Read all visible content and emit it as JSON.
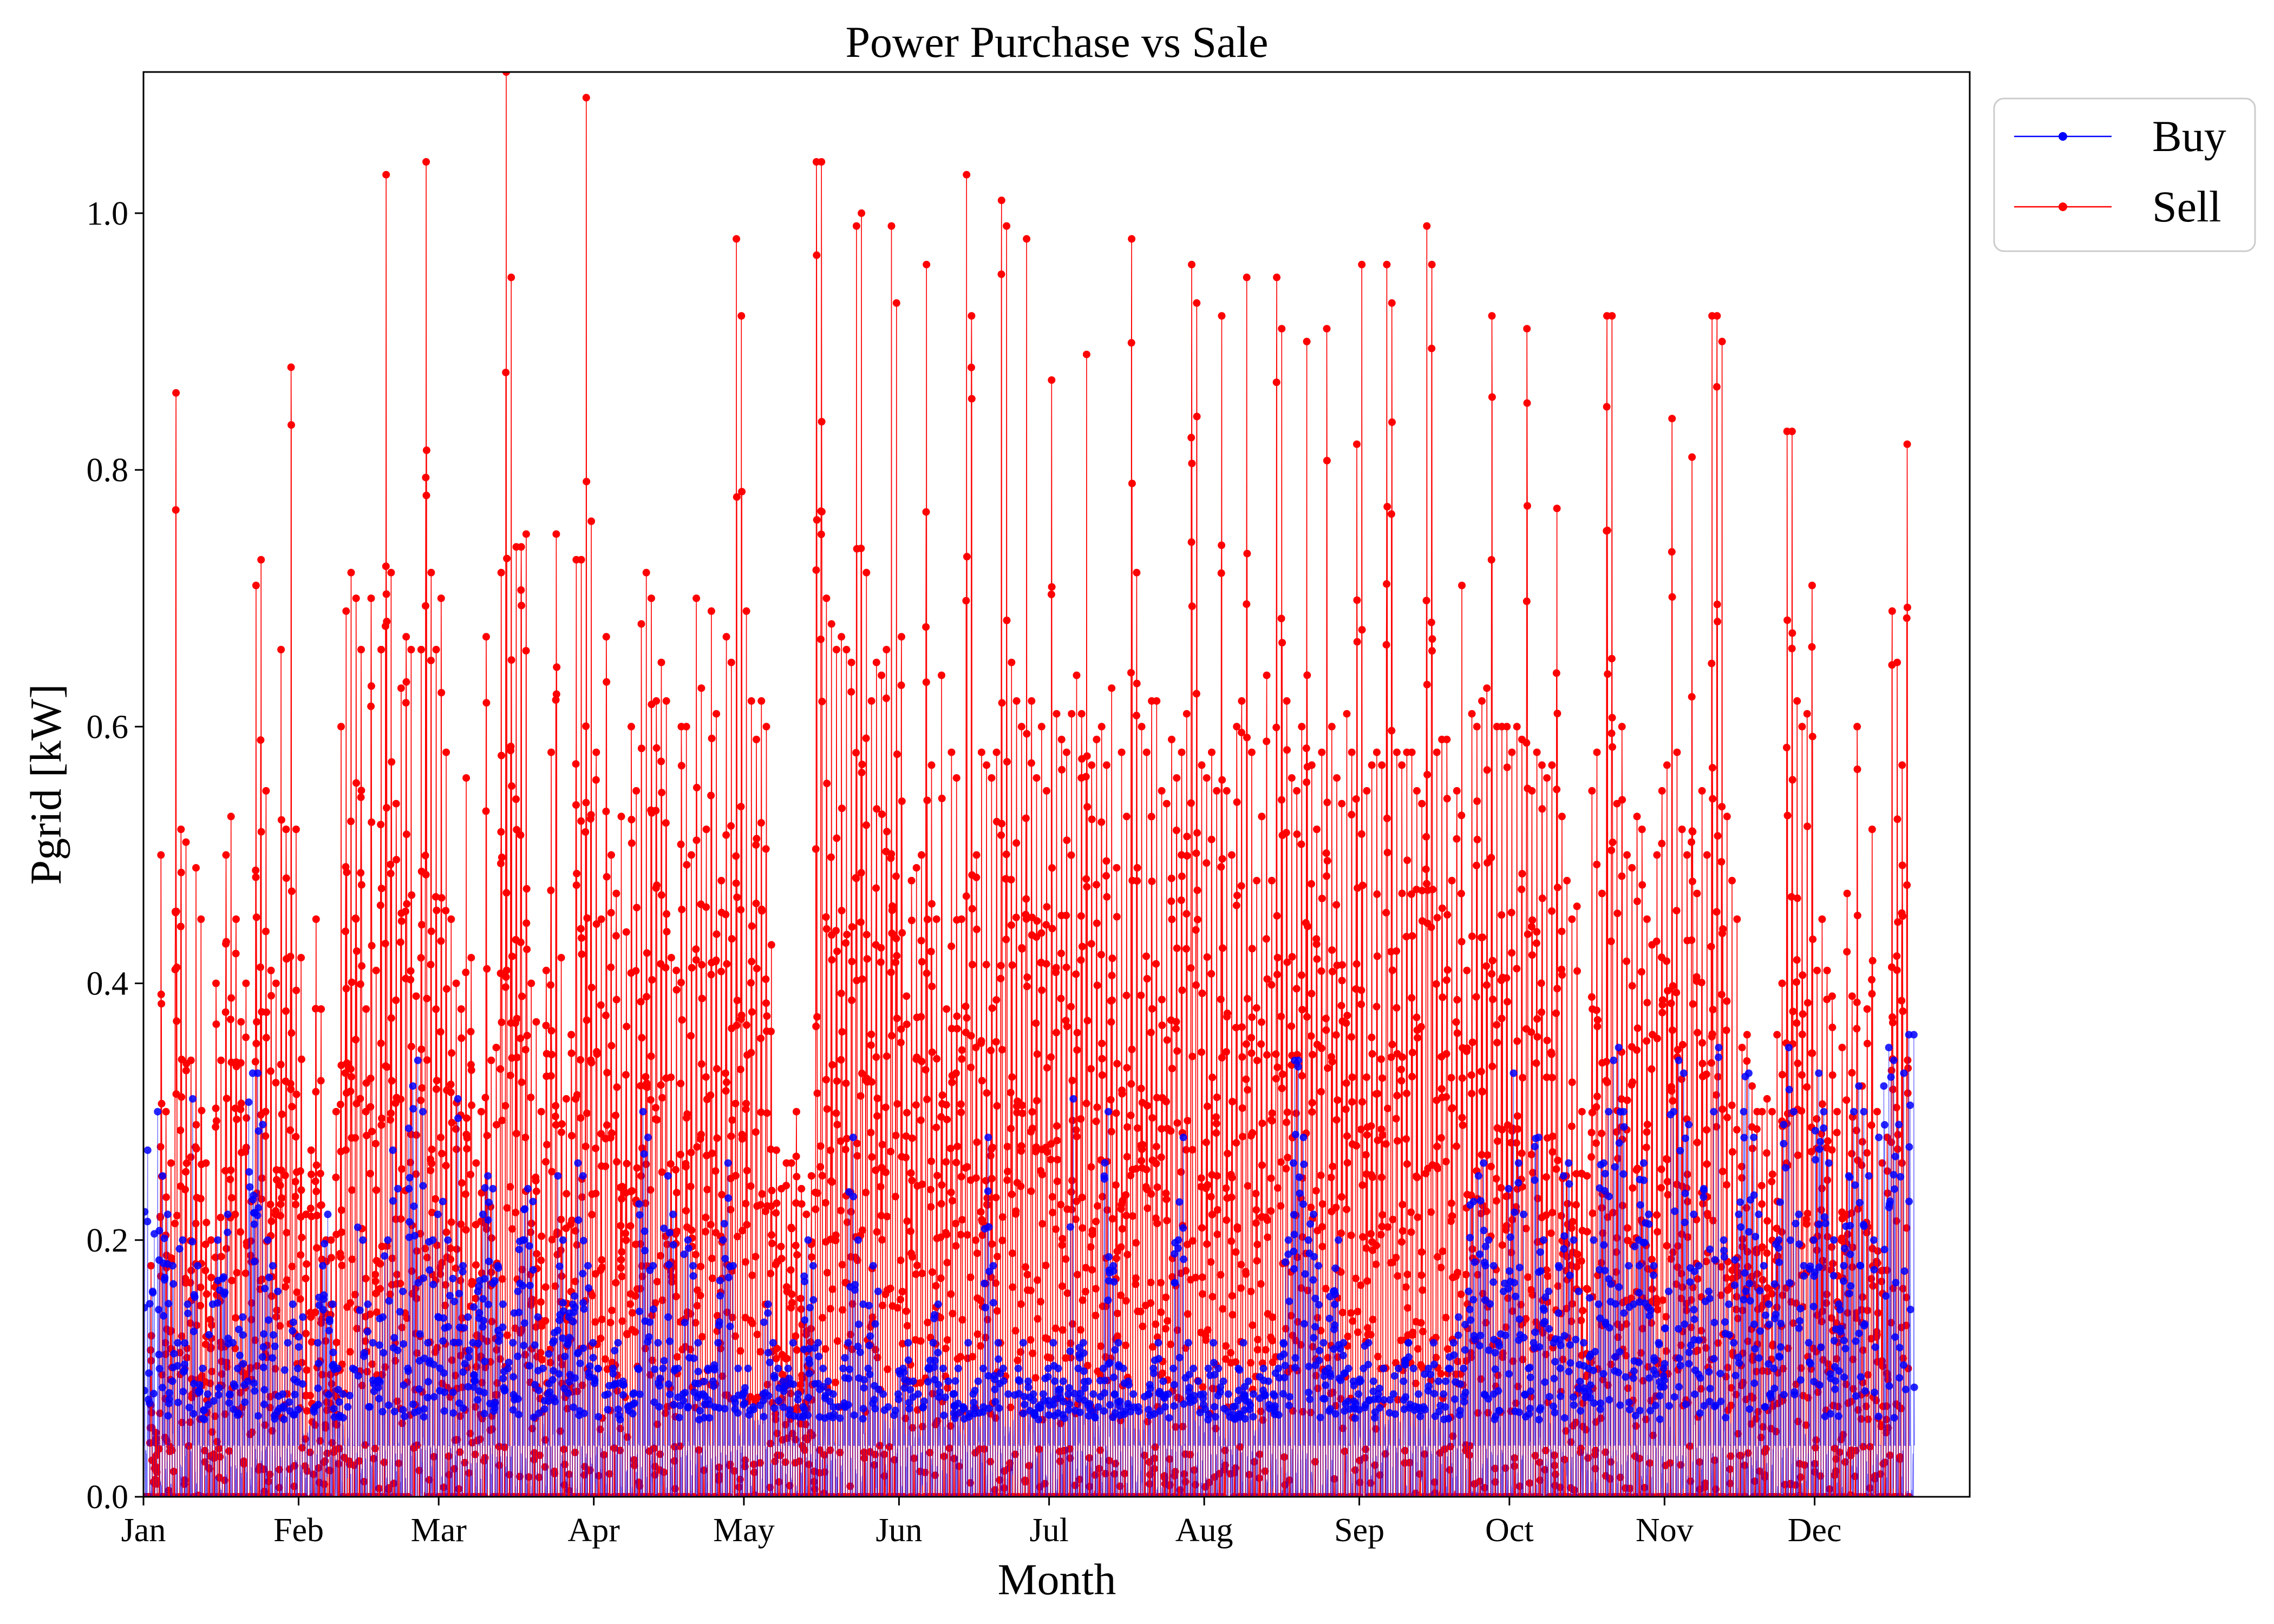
{
  "chart_data": {
    "type": "line",
    "title": "Power Purchase vs Sale",
    "xlabel": "Month",
    "ylabel": "Pgrid [kW]",
    "ylim": [
      0.0,
      1.11
    ],
    "xlim_days": [
      0,
      365
    ],
    "yticks": [
      "0.0",
      "0.2",
      "0.4",
      "0.6",
      "0.8",
      "1.0"
    ],
    "yticks_values": [
      0.0,
      0.2,
      0.4,
      0.6,
      0.8,
      1.0
    ],
    "xticks": [
      "Jan",
      "Feb",
      "Mar",
      "Apr",
      "May",
      "Jun",
      "Jul",
      "Aug",
      "Sep",
      "Oct",
      "Nov",
      "Dec"
    ],
    "xticks_day_of_year": [
      0,
      31,
      59,
      90,
      120,
      151,
      181,
      212,
      243,
      273,
      304,
      334
    ],
    "grid": false,
    "legend_position": "outside-upper-right",
    "resolution": "hourly samples across one year (8760 per series); shown here as daily peak values",
    "series": [
      {
        "name": "Buy",
        "color": "#0000ff",
        "marker": "circle",
        "base_level": 0.04,
        "daily_peak": [
          0.27,
          0.16,
          0.3,
          0.25,
          0.22,
          0.18,
          0.12,
          0.2,
          0.15,
          0.31,
          0.18,
          0.1,
          0.08,
          0.15,
          0.2,
          0.17,
          0.22,
          0.12,
          0.1,
          0.14,
          0.09,
          0.33,
          0.33,
          0.29,
          0.2,
          0.18,
          0.16,
          0.08,
          0.12,
          0.15,
          0.1,
          0.14,
          0.05,
          0.06,
          0.12,
          0.18,
          0.22,
          0.15,
          0.1,
          0.08,
          0.07,
          0.1,
          0.21,
          0.2,
          0.15,
          0.12,
          0.09,
          0.14,
          0.2,
          0.27,
          0.24,
          0.16,
          0.1,
          0.32,
          0.34,
          0.3,
          0.12,
          0.2,
          0.22,
          0.23,
          0.2,
          0.17,
          0.31,
          0.18,
          0.14,
          0.12,
          0.16,
          0.22,
          0.25,
          0.24,
          0.18,
          0.15,
          0.1,
          0.12,
          0.16,
          0.2,
          0.24,
          0.23,
          0.14,
          0.1,
          0.08,
          0.12,
          0.25,
          0.2,
          0.12,
          0.15,
          0.26,
          0.25,
          0.18,
          0.12,
          0.1,
          0.06,
          0.08,
          0.1,
          0.12,
          0.09,
          0.07,
          0.08,
          0.1,
          0.3,
          0.28,
          0.18,
          0.12,
          0.1,
          0.25,
          0.22,
          0.1,
          0.08,
          0.2,
          0.18,
          0.12,
          0.08,
          0.1,
          0.09,
          0.12,
          0.2,
          0.26,
          0.18,
          0.1,
          0.08,
          0.1,
          0.07,
          0.06,
          0.08,
          0.15,
          0.12,
          0.1,
          0.09,
          0.1,
          0.12,
          0.08,
          0.07,
          0.2,
          0.18,
          0.12,
          0.1,
          0.09,
          0.08,
          0.07,
          0.1,
          0.12,
          0.28,
          0.2,
          0.15,
          0.1,
          0.18,
          0.16,
          0.08,
          0.07,
          0.06,
          0.08,
          0.1,
          0.12,
          0.09,
          0.08,
          0.07,
          0.1,
          0.12,
          0.15,
          0.1,
          0.09,
          0.08,
          0.1,
          0.07,
          0.12,
          0.08,
          0.09,
          0.1,
          0.28,
          0.18,
          0.12,
          0.1,
          0.08,
          0.06,
          0.1,
          0.12,
          0.09,
          0.08,
          0.07,
          0.08,
          0.1,
          0.12,
          0.1,
          0.09,
          0.08,
          0.31,
          0.1,
          0.12,
          0.09,
          0.08,
          0.07,
          0.1,
          0.3,
          0.18,
          0.12,
          0.1,
          0.09,
          0.08,
          0.07,
          0.06,
          0.08,
          0.1,
          0.12,
          0.09,
          0.08,
          0.1,
          0.2,
          0.28,
          0.12,
          0.1,
          0.09,
          0.08,
          0.1,
          0.12,
          0.1,
          0.09,
          0.08,
          0.07,
          0.1,
          0.12,
          0.09,
          0.08,
          0.06,
          0.1,
          0.09,
          0.08,
          0.1,
          0.12,
          0.2,
          0.26,
          0.34,
          0.28,
          0.2,
          0.22,
          0.18,
          0.12,
          0.1,
          0.16,
          0.2,
          0.12,
          0.1,
          0.09,
          0.08,
          0.1,
          0.12,
          0.09,
          0.08,
          0.1,
          0.06,
          0.08,
          0.1,
          0.09,
          0.12,
          0.1,
          0.08,
          0.07,
          0.1,
          0.12,
          0.09,
          0.08,
          0.1,
          0.12,
          0.14,
          0.1,
          0.16,
          0.23,
          0.25,
          0.26,
          0.2,
          0.18,
          0.12,
          0.16,
          0.24,
          0.33,
          0.26,
          0.22,
          0.1,
          0.12,
          0.28,
          0.2,
          0.16,
          0.12,
          0.18,
          0.25,
          0.26,
          0.2,
          0.16,
          0.12,
          0.1,
          0.2,
          0.15,
          0.26,
          0.3,
          0.34,
          0.35,
          0.3,
          0.18,
          0.15,
          0.2,
          0.26,
          0.22,
          0.18,
          0.12,
          0.1,
          0.16,
          0.3,
          0.34,
          0.33,
          0.29,
          0.22,
          0.18,
          0.24,
          0.16,
          0.3,
          0.35,
          0.2,
          0.15,
          0.12,
          0.22,
          0.3,
          0.33,
          0.28,
          0.22,
          0.18,
          0.15,
          0.1,
          0.2,
          0.29,
          0.35,
          0.3,
          0.22,
          0.18,
          0.12,
          0.2,
          0.33,
          0.3,
          0.26,
          0.2,
          0.15,
          0.18,
          0.25,
          0.3,
          0.32,
          0.3,
          0.25,
          0.2,
          0.28,
          0.32,
          0.35,
          0.34,
          0.29,
          0.33,
          0.36,
          0.36
        ]
      },
      {
        "name": "Sell",
        "color": "#ff0000",
        "marker": "circle",
        "daily_peak": [
          0.0,
          0.18,
          0.05,
          0.5,
          0.3,
          0.26,
          0.86,
          0.52,
          0.51,
          0.34,
          0.49,
          0.45,
          0.26,
          0.2,
          0.4,
          0.34,
          0.5,
          0.53,
          0.45,
          0.37,
          0.4,
          0.23,
          0.71,
          0.73,
          0.55,
          0.41,
          0.4,
          0.66,
          0.52,
          0.88,
          0.52,
          0.42,
          0.22,
          0.27,
          0.45,
          0.38,
          0.2,
          0.2,
          0.3,
          0.6,
          0.69,
          0.72,
          0.7,
          0.66,
          0.38,
          0.7,
          0.41,
          0.66,
          1.03,
          0.72,
          0.54,
          0.63,
          0.67,
          0.66,
          0.39,
          0.66,
          1.04,
          0.72,
          0.66,
          0.7,
          0.58,
          0.45,
          0.4,
          0.38,
          0.56,
          0.42,
          0.26,
          0.3,
          0.67,
          0.34,
          0.35,
          0.72,
          1.11,
          0.95,
          0.74,
          0.74,
          0.75,
          0.4,
          0.37,
          0.3,
          0.41,
          0.58,
          0.75,
          0.42,
          0.31,
          0.36,
          0.73,
          0.73,
          1.09,
          0.76,
          0.58,
          0.45,
          0.67,
          0.5,
          0.47,
          0.53,
          0.44,
          0.6,
          0.55,
          0.68,
          0.72,
          0.7,
          0.62,
          0.65,
          0.62,
          0.42,
          0.41,
          0.6,
          0.6,
          0.5,
          0.7,
          0.63,
          0.52,
          0.69,
          0.61,
          0.48,
          0.67,
          0.65,
          0.98,
          0.92,
          0.69,
          0.62,
          0.59,
          0.62,
          0.6,
          0.43,
          0.27,
          0.24,
          0.26,
          0.26,
          0.3,
          0.24,
          0.22,
          0.25,
          1.04,
          1.04,
          0.7,
          0.68,
          0.66,
          0.67,
          0.66,
          0.65,
          0.99,
          1.0,
          0.72,
          0.62,
          0.65,
          0.64,
          0.66,
          0.99,
          0.93,
          0.67,
          0.39,
          0.48,
          0.49,
          0.5,
          0.96,
          0.57,
          0.45,
          0.64,
          0.38,
          0.58,
          0.56,
          0.45,
          1.03,
          0.92,
          0.5,
          0.58,
          0.57,
          0.56,
          0.58,
          1.01,
          0.99,
          0.65,
          0.62,
          0.6,
          0.98,
          0.62,
          0.56,
          0.6,
          0.55,
          0.87,
          0.61,
          0.59,
          0.58,
          0.61,
          0.64,
          0.61,
          0.89,
          0.57,
          0.59,
          0.6,
          0.57,
          0.63,
          0.49,
          0.58,
          0.53,
          0.98,
          0.72,
          0.6,
          0.58,
          0.62,
          0.62,
          0.55,
          0.54,
          0.59,
          0.56,
          0.58,
          0.61,
          0.96,
          0.93,
          0.57,
          0.56,
          0.58,
          0.55,
          0.92,
          0.55,
          0.5,
          0.6,
          0.62,
          0.95,
          0.58,
          0.48,
          0.53,
          0.64,
          0.48,
          0.95,
          0.91,
          0.62,
          0.56,
          0.55,
          0.6,
          0.9,
          0.57,
          0.52,
          0.58,
          0.91,
          0.6,
          0.56,
          0.54,
          0.61,
          0.58,
          0.82,
          0.96,
          0.55,
          0.57,
          0.58,
          0.57,
          0.96,
          0.93,
          0.58,
          0.57,
          0.58,
          0.58,
          0.55,
          0.54,
          0.99,
          0.96,
          0.58,
          0.59,
          0.59,
          0.48,
          0.55,
          0.71,
          0.41,
          0.61,
          0.6,
          0.62,
          0.63,
          0.92,
          0.6,
          0.6,
          0.6,
          0.58,
          0.6,
          0.59,
          0.91,
          0.55,
          0.58,
          0.57,
          0.56,
          0.57,
          0.77,
          0.53,
          0.48,
          0.45,
          0.46,
          0.3,
          0.25,
          0.55,
          0.58,
          0.47,
          0.92,
          0.92,
          0.54,
          0.6,
          0.5,
          0.49,
          0.53,
          0.52,
          0.45,
          0.43,
          0.5,
          0.55,
          0.57,
          0.84,
          0.58,
          0.52,
          0.5,
          0.81,
          0.47,
          0.55,
          0.5,
          0.92,
          0.92,
          0.9,
          0.53,
          0.48,
          0.45,
          0.35,
          0.36,
          0.32,
          0.3,
          0.3,
          0.31,
          0.3,
          0.36,
          0.4,
          0.83,
          0.83,
          0.62,
          0.6,
          0.61,
          0.71,
          0.41,
          0.45,
          0.41,
          0.39,
          0.3,
          0.35,
          0.47,
          0.39,
          0.6,
          0.32,
          0.38,
          0.52,
          0.3,
          0.26,
          0.28,
          0.69,
          0.65,
          0.57,
          0.82
        ]
      }
    ]
  }
}
